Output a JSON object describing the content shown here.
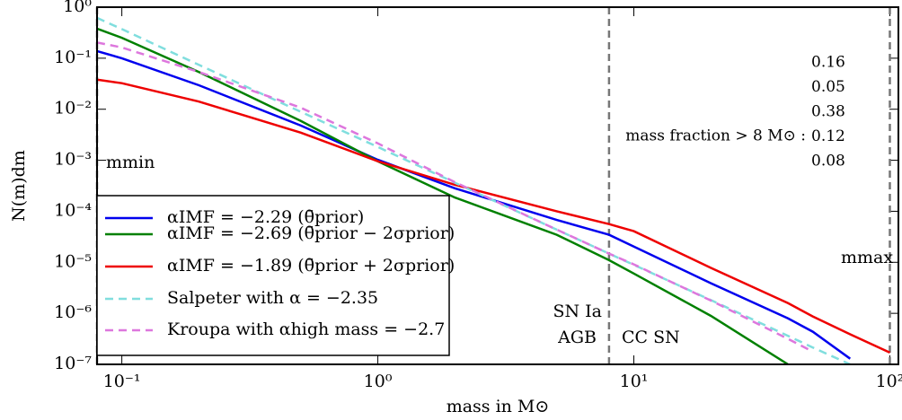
{
  "chart_data": {
    "type": "line",
    "x_label": "mass in M⊙",
    "y_label": "N(m)dm",
    "x": [
      0.08,
      0.1,
      0.2,
      0.5,
      1,
      2,
      5,
      8,
      10,
      20,
      40,
      50,
      70,
      100
    ],
    "series": [
      {
        "name": "αIMF = −2.29 (θ̄prior)",
        "color": "#0000ee",
        "dashed": false,
        "values": [
          0.138,
          0.1,
          0.0295,
          0.00479,
          0.00102,
          0.000282,
          6.76e-05,
          3.47e-05,
          2.04e-05,
          3.89e-06,
          7.94e-07,
          4.37e-07,
          1.29e-07,
          null
        ]
      },
      {
        "name": "αIMF = −2.69 (θ̄prior − 2σprior)",
        "color": "#008000",
        "dashed": false,
        "values": [
          0.38,
          0.251,
          0.0537,
          0.00589,
          0.000955,
          0.000186,
          3.47e-05,
          1.1e-05,
          6.03e-06,
          8.91e-07,
          1e-07,
          null,
          null,
          null
        ]
      },
      {
        "name": "αIMF = −1.89 (θ̄prior + 2σprior)",
        "color": "#ee0000",
        "dashed": false,
        "values": [
          0.038,
          0.0324,
          0.0141,
          0.00347,
          0.000955,
          0.000331,
          0.0001,
          5.62e-05,
          4.07e-05,
          7.76e-06,
          1.58e-06,
          8.71e-07,
          3.89e-07,
          1.7e-07
        ]
      },
      {
        "name": "Salpeter with α = −2.35",
        "color": "#80dede",
        "dashed": true,
        "values": [
          0.617,
          0.372,
          0.0741,
          0.00891,
          0.00182,
          0.000363,
          4.37e-05,
          1.48e-05,
          8.91e-06,
          1.82e-06,
          3.63e-07,
          2.14e-07,
          1e-07,
          null
        ]
      },
      {
        "name": "Kroupa with αhigh mass = −2.7",
        "color": "#dd77dd",
        "dashed": true,
        "values": [
          0.204,
          0.162,
          0.0537,
          0.0107,
          0.00214,
          0.000372,
          4.37e-05,
          1.48e-05,
          9.12e-06,
          1.78e-06,
          3.16e-07,
          1.78e-07,
          null,
          null
        ]
      }
    ],
    "xlim": [
      0.08,
      108
    ],
    "ylim": [
      1e-07,
      1
    ],
    "log_x": true,
    "log_y": true,
    "xticks": [
      {
        "value": 0.1,
        "label": "10⁻¹"
      },
      {
        "value": 1,
        "label": "10⁰"
      },
      {
        "value": 10,
        "label": "10¹"
      },
      {
        "value": 100,
        "label": "10²"
      }
    ],
    "yticks": [
      {
        "value": 1e-07,
        "label": "10⁻⁷"
      },
      {
        "value": 1e-06,
        "label": "10⁻⁶"
      },
      {
        "value": 1e-05,
        "label": "10⁻⁵"
      },
      {
        "value": 0.0001,
        "label": "10⁻⁴"
      },
      {
        "value": 0.001,
        "label": "10⁻³"
      },
      {
        "value": 0.01,
        "label": "10⁻²"
      },
      {
        "value": 0.1,
        "label": "10⁻¹"
      },
      {
        "value": 1,
        "label": "10⁰"
      }
    ],
    "vlines": [
      0.08,
      8,
      100
    ],
    "legend": "lower left",
    "annotations": {
      "m_min": "mmin",
      "m_max": "mmax",
      "sn_ia": "SN Ia",
      "agb": "AGB",
      "cc_sn": "CC SN",
      "mass_fraction_label": "mass fraction > 8 M⊙ :"
    },
    "mass_fractions": [
      {
        "value": 0.16,
        "color": "#7777ff"
      },
      {
        "value": 0.05,
        "color": "#44aa44"
      },
      {
        "value": 0.38,
        "color": "#ff6666"
      },
      {
        "value": 0.12,
        "color": "#66dddd"
      },
      {
        "value": 0.08,
        "color": "#dd77dd"
      }
    ]
  }
}
